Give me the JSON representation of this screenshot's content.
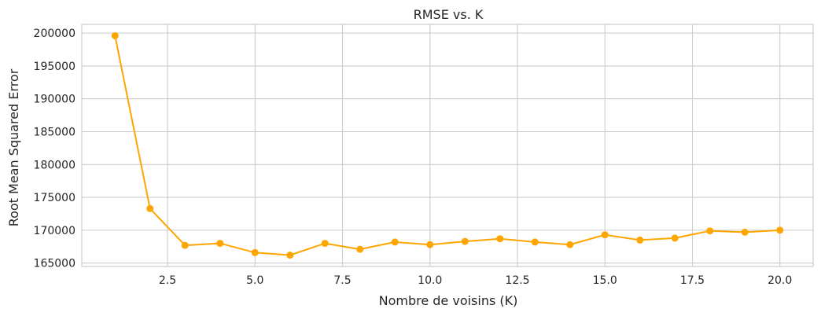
{
  "chart_data": {
    "type": "line",
    "title": "RMSE vs. K",
    "xlabel": "Nombre de voisins (K)",
    "ylabel": "Root Mean Squared Error",
    "x": [
      1,
      2,
      3,
      4,
      5,
      6,
      7,
      8,
      9,
      10,
      11,
      12,
      13,
      14,
      15,
      16,
      17,
      18,
      19,
      20
    ],
    "series": [
      {
        "values": [
          199600,
          173300,
          167700,
          168000,
          166600,
          166200,
          168000,
          167100,
          168200,
          167800,
          168300,
          168700,
          168200,
          167800,
          169300,
          168500,
          168800,
          169900,
          169700,
          170000
        ],
        "color": "#ffa500",
        "marker": "circle"
      }
    ],
    "xticks": [
      2.5,
      5.0,
      7.5,
      10.0,
      12.5,
      15.0,
      17.5,
      20.0
    ],
    "xtick_labels": [
      "2.5",
      "5.0",
      "7.5",
      "10.0",
      "12.5",
      "15.0",
      "17.5",
      "20.0"
    ],
    "yticks": [
      165000,
      170000,
      175000,
      180000,
      185000,
      190000,
      195000,
      200000
    ],
    "ytick_labels": [
      "165000",
      "170000",
      "175000",
      "180000",
      "185000",
      "190000",
      "195000",
      "200000"
    ],
    "xlim": [
      0.05,
      20.95
    ],
    "ylim": [
      164480,
      201330
    ],
    "grid": true,
    "colors": {
      "grid": "#cccccc",
      "frame": "#cccccc",
      "text": "#262626",
      "line": "#ffa500"
    }
  }
}
